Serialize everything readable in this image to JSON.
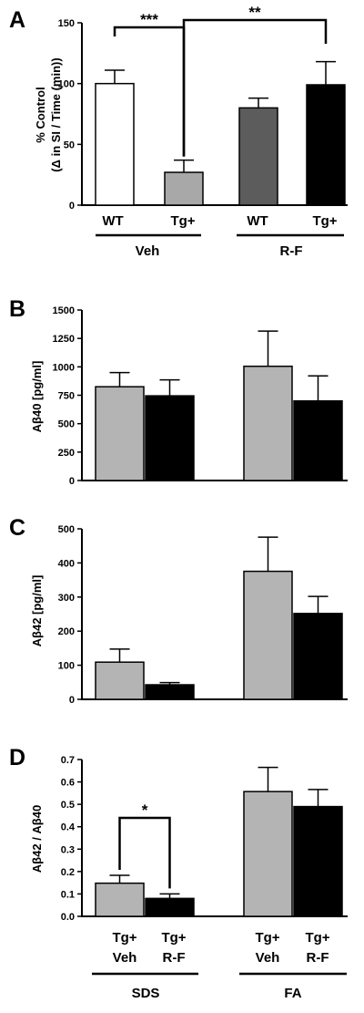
{
  "figure": {
    "panels": [
      {
        "letter": "A",
        "ylabel_line1": "% Control",
        "ylabel_line2": "(Δ in SI / Time (min))"
      },
      {
        "letter": "B",
        "ylabel": "Aβ40 [pg/ml]"
      },
      {
        "letter": "C",
        "ylabel": "Aβ42 [pg/ml]"
      },
      {
        "letter": "D",
        "ylabel": "Aβ42 / Aβ40"
      }
    ],
    "panelA_categories": [
      "WT",
      "Tg+",
      "WT",
      "Tg+"
    ],
    "panelA_groups": [
      "Veh",
      "R-F"
    ],
    "panelD_categories_top": [
      "Tg+",
      "Tg+",
      "Tg+",
      "Tg+"
    ],
    "panelD_categories_bottom": [
      "Veh",
      "R-F",
      "Veh",
      "R-F"
    ],
    "panelD_groups": [
      "SDS",
      "FA"
    ]
  },
  "chart_data": [
    {
      "type": "bar",
      "panel": "A",
      "categories": [
        "WT Veh",
        "Tg+ Veh",
        "WT R-F",
        "Tg+ R-F"
      ],
      "values": [
        100,
        27,
        80,
        99
      ],
      "errors": [
        11,
        10,
        8,
        19
      ],
      "colors": [
        "#ffffff",
        "#a8a8a8",
        "#5c5c5c",
        "#000000"
      ],
      "ylim": [
        0,
        150
      ],
      "yticks": [
        "0",
        "50",
        "100",
        "150"
      ],
      "significance": [
        {
          "from": 0,
          "to": 1,
          "label": "***"
        },
        {
          "from": 1,
          "to": 3,
          "label": "**"
        }
      ]
    },
    {
      "type": "bar",
      "panel": "B",
      "categories": [
        "SDS Veh",
        "SDS R-F",
        "FA Veh",
        "FA R-F"
      ],
      "values": [
        825,
        745,
        1005,
        700
      ],
      "errors": [
        125,
        140,
        310,
        220
      ],
      "colors": [
        "#b4b4b4",
        "#000000",
        "#b4b4b4",
        "#000000"
      ],
      "ylim": [
        0,
        1500
      ],
      "yticks": [
        "0",
        "250",
        "500",
        "750",
        "1000",
        "1250",
        "1500"
      ]
    },
    {
      "type": "bar",
      "panel": "C",
      "categories": [
        "SDS Veh",
        "SDS R-F",
        "FA Veh",
        "FA R-F"
      ],
      "values": [
        120,
        47,
        413,
        277
      ],
      "errors": [
        42,
        7,
        110,
        55
      ],
      "colors": [
        "#b4b4b4",
        "#000000",
        "#b4b4b4",
        "#000000"
      ],
      "ylim": [
        0,
        550
      ],
      "yticks": [
        "0",
        "100",
        "200",
        "300",
        "400",
        "500"
      ]
    },
    {
      "type": "bar",
      "panel": "D",
      "categories": [
        "SDS Veh",
        "SDS R-F",
        "FA Veh",
        "FA R-F"
      ],
      "values": [
        0.148,
        0.08,
        0.557,
        0.49
      ],
      "errors": [
        0.035,
        0.02,
        0.108,
        0.076
      ],
      "colors": [
        "#b4b4b4",
        "#000000",
        "#b4b4b4",
        "#000000"
      ],
      "ylim": [
        0,
        0.7
      ],
      "yticks": [
        "0.0",
        "0.1",
        "0.2",
        "0.3",
        "0.4",
        "0.5",
        "0.6",
        "0.7"
      ],
      "significance": [
        {
          "from": 0,
          "to": 1,
          "label": "*"
        }
      ]
    }
  ]
}
